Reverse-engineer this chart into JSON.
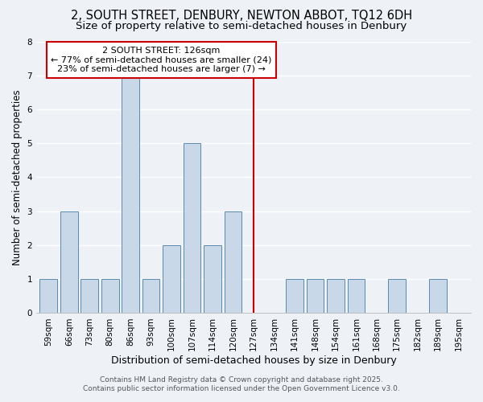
{
  "title_line1": "2, SOUTH STREET, DENBURY, NEWTON ABBOT, TQ12 6DH",
  "title_line2": "Size of property relative to semi-detached houses in Denbury",
  "xlabel": "Distribution of semi-detached houses by size in Denbury",
  "ylabel": "Number of semi-detached properties",
  "bins": [
    "59sqm",
    "66sqm",
    "73sqm",
    "80sqm",
    "86sqm",
    "93sqm",
    "100sqm",
    "107sqm",
    "114sqm",
    "120sqm",
    "127sqm",
    "134sqm",
    "141sqm",
    "148sqm",
    "154sqm",
    "161sqm",
    "168sqm",
    "175sqm",
    "182sqm",
    "189sqm",
    "195sqm"
  ],
  "values": [
    1,
    3,
    1,
    1,
    7,
    1,
    2,
    5,
    2,
    3,
    0,
    0,
    1,
    1,
    1,
    1,
    0,
    1,
    0,
    1,
    0
  ],
  "bar_color": "#c8d8e8",
  "bar_edge_color": "#5a8ab0",
  "vline_x_index": 10,
  "vline_color": "#cc0000",
  "ylim": [
    0,
    8
  ],
  "yticks": [
    0,
    1,
    2,
    3,
    4,
    5,
    6,
    7,
    8
  ],
  "annotation_title": "2 SOUTH STREET: 126sqm",
  "annotation_line1": "← 77% of semi-detached houses are smaller (24)",
  "annotation_line2": "23% of semi-detached houses are larger (7) →",
  "annotation_box_color": "#ffffff",
  "annotation_edge_color": "#cc0000",
  "footer_line1": "Contains HM Land Registry data © Crown copyright and database right 2025.",
  "footer_line2": "Contains public sector information licensed under the Open Government Licence v3.0.",
  "background_color": "#eef2f7",
  "grid_color": "#ffffff",
  "title_fontsize": 10.5,
  "subtitle_fontsize": 9.5,
  "xlabel_fontsize": 9,
  "ylabel_fontsize": 8.5,
  "tick_fontsize": 7.5,
  "annotation_fontsize": 8,
  "footer_fontsize": 6.5
}
